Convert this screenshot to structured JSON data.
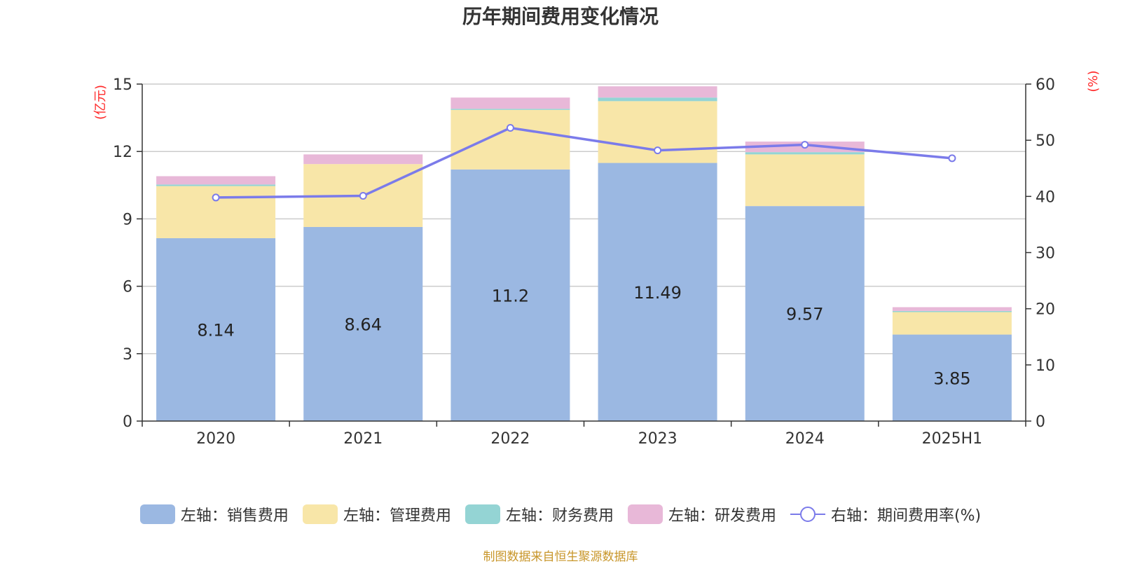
{
  "title": "历年期间费用变化情况",
  "source": "制图数据来自恒生聚源数据库",
  "chart_data": {
    "type": "bar",
    "stacked": true,
    "categories": [
      "2020",
      "2021",
      "2022",
      "2023",
      "2024",
      "2025H1"
    ],
    "left_axis": {
      "label": "(亿元)",
      "ylim": [
        0,
        15
      ],
      "ticks": [
        0,
        3,
        6,
        9,
        12,
        15
      ]
    },
    "right_axis": {
      "label": "(%)",
      "ylim": [
        0,
        60
      ],
      "ticks": [
        0,
        10,
        20,
        30,
        40,
        50,
        60
      ]
    },
    "grid": true,
    "legend_position": "bottom",
    "series": [
      {
        "name": "左轴：销售费用",
        "type": "bar",
        "color": "#9bb8e2",
        "values": [
          8.14,
          8.64,
          11.2,
          11.49,
          9.57,
          3.85
        ],
        "labels": [
          "8.14",
          "8.64",
          "11.2",
          "11.49",
          "9.57",
          "3.85"
        ]
      },
      {
        "name": "左轴：管理费用",
        "type": "bar",
        "color": "#f8e6a8",
        "values": [
          2.32,
          2.8,
          2.65,
          2.75,
          2.3,
          1.0
        ]
      },
      {
        "name": "左轴：财务费用",
        "type": "bar",
        "color": "#94d4d4",
        "values": [
          0.07,
          0.0,
          0.05,
          0.16,
          0.1,
          0.05
        ]
      },
      {
        "name": "左轴：研发费用",
        "type": "bar",
        "color": "#e8b8d8",
        "values": [
          0.37,
          0.43,
          0.5,
          0.5,
          0.47,
          0.17
        ]
      },
      {
        "name": "右轴：期间费用率(%)",
        "type": "line",
        "axis": "right",
        "color": "#7b7bea",
        "values": [
          39.8,
          40.1,
          52.2,
          48.2,
          49.2,
          46.8
        ]
      }
    ]
  }
}
